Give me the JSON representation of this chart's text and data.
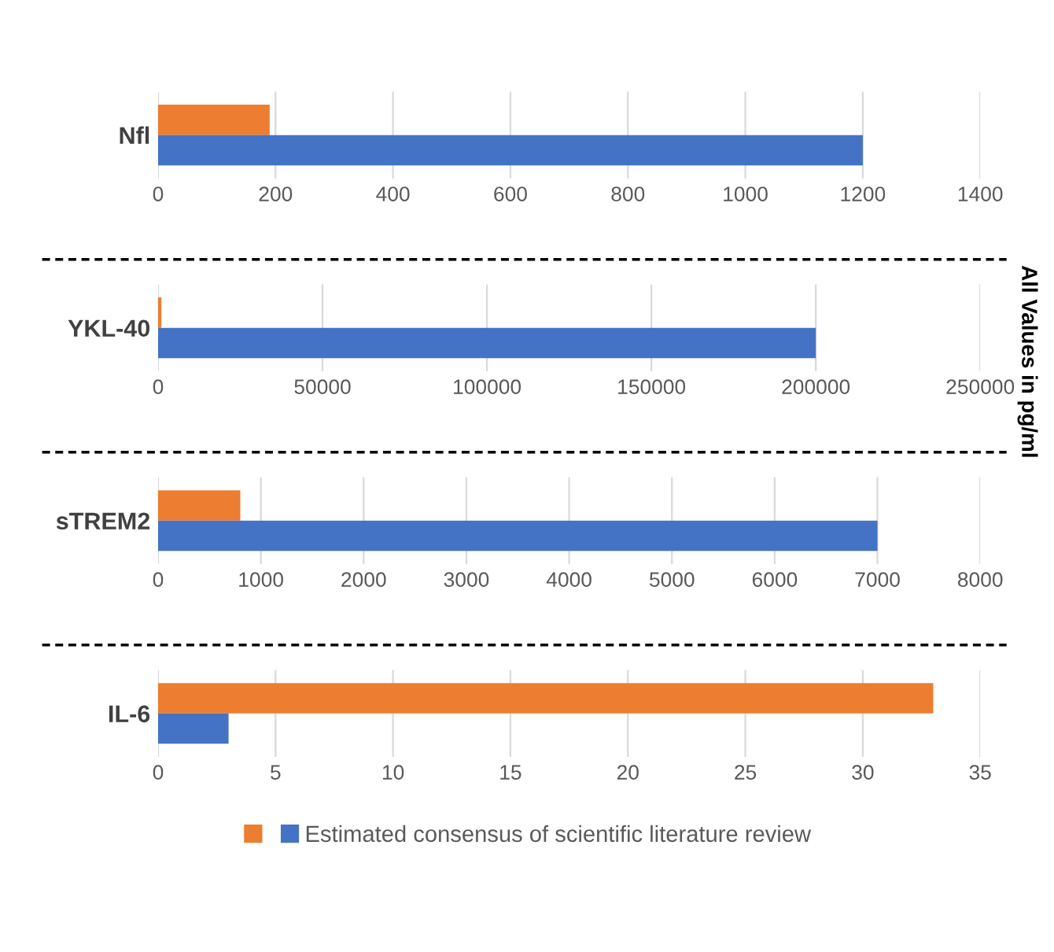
{
  "chart_data": [
    {
      "type": "bar",
      "orientation": "horizontal",
      "categories": [
        "Nfl"
      ],
      "series": [
        {
          "color": "#ed7d31",
          "values": [
            190
          ]
        },
        {
          "color": "#4472c4",
          "values": [
            1200
          ]
        }
      ],
      "xlim": [
        0,
        1400
      ],
      "xticks": [
        0,
        200,
        400,
        600,
        800,
        1000,
        1200,
        1400
      ],
      "grid": "x",
      "annotations": [
        "All Values in pg/ml"
      ]
    },
    {
      "type": "bar",
      "orientation": "horizontal",
      "categories": [
        "YKL-40"
      ],
      "series": [
        {
          "color": "#ed7d31",
          "values": [
            1000
          ]
        },
        {
          "color": "#4472c4",
          "values": [
            200000
          ]
        }
      ],
      "xlim": [
        0,
        250000
      ],
      "xticks": [
        0,
        50000,
        100000,
        150000,
        200000,
        250000
      ],
      "grid": "x"
    },
    {
      "type": "bar",
      "orientation": "horizontal",
      "categories": [
        "sTREM2"
      ],
      "series": [
        {
          "color": "#ed7d31",
          "values": [
            800
          ]
        },
        {
          "color": "#4472c4",
          "values": [
            7000
          ]
        }
      ],
      "xlim": [
        0,
        8000
      ],
      "xticks": [
        0,
        1000,
        2000,
        3000,
        4000,
        5000,
        6000,
        7000,
        8000
      ],
      "grid": "x"
    },
    {
      "type": "bar",
      "orientation": "horizontal",
      "categories": [
        "IL-6"
      ],
      "series": [
        {
          "color": "#ed7d31",
          "values": [
            33
          ]
        },
        {
          "name": "Estimated consensus of scientific literature review",
          "color": "#4472c4",
          "values": [
            3
          ]
        }
      ],
      "xlim": [
        0,
        35
      ],
      "xticks": [
        0,
        5,
        10,
        15,
        20,
        25,
        30,
        35
      ],
      "grid": "x",
      "legend": "bottom"
    }
  ]
}
